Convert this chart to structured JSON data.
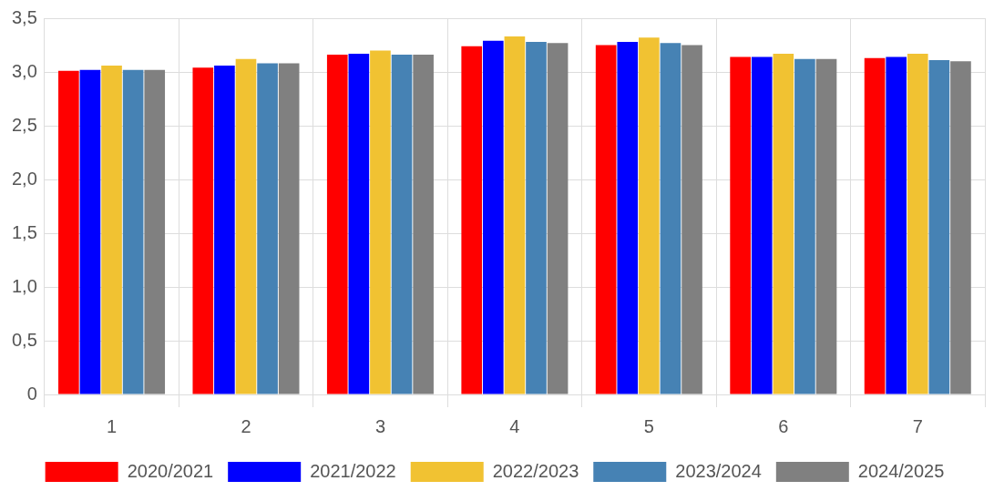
{
  "chart_data": {
    "type": "bar",
    "categories": [
      "1",
      "2",
      "3",
      "4",
      "5",
      "6",
      "7"
    ],
    "series": [
      {
        "name": "2020/2021",
        "color": "#ff0000",
        "values": [
          3.01,
          3.04,
          3.16,
          3.24,
          3.25,
          3.14,
          3.13
        ]
      },
      {
        "name": "2021/2022",
        "color": "#0000ff",
        "values": [
          3.02,
          3.06,
          3.17,
          3.29,
          3.28,
          3.14,
          3.14
        ]
      },
      {
        "name": "2022/2023",
        "color": "#f1c232",
        "values": [
          3.06,
          3.12,
          3.2,
          3.33,
          3.32,
          3.17,
          3.17
        ]
      },
      {
        "name": "2023/2024",
        "color": "#4682b4",
        "values": [
          3.02,
          3.08,
          3.16,
          3.28,
          3.27,
          3.12,
          3.11
        ]
      },
      {
        "name": "2024/2025",
        "color": "#808080",
        "values": [
          3.02,
          3.08,
          3.16,
          3.27,
          3.25,
          3.12,
          3.1
        ]
      }
    ],
    "ylim": [
      0,
      3.5
    ],
    "yticks": [
      {
        "value": 0,
        "label": "0"
      },
      {
        "value": 0.5,
        "label": "0,5"
      },
      {
        "value": 1,
        "label": "1,0"
      },
      {
        "value": 1.5,
        "label": "1,5"
      },
      {
        "value": 2,
        "label": "2,0"
      },
      {
        "value": 2.5,
        "label": "2,5"
      },
      {
        "value": 3,
        "label": "3,0"
      },
      {
        "value": 3.5,
        "label": "3,5"
      }
    ],
    "grid": true,
    "legend": "bottom"
  }
}
